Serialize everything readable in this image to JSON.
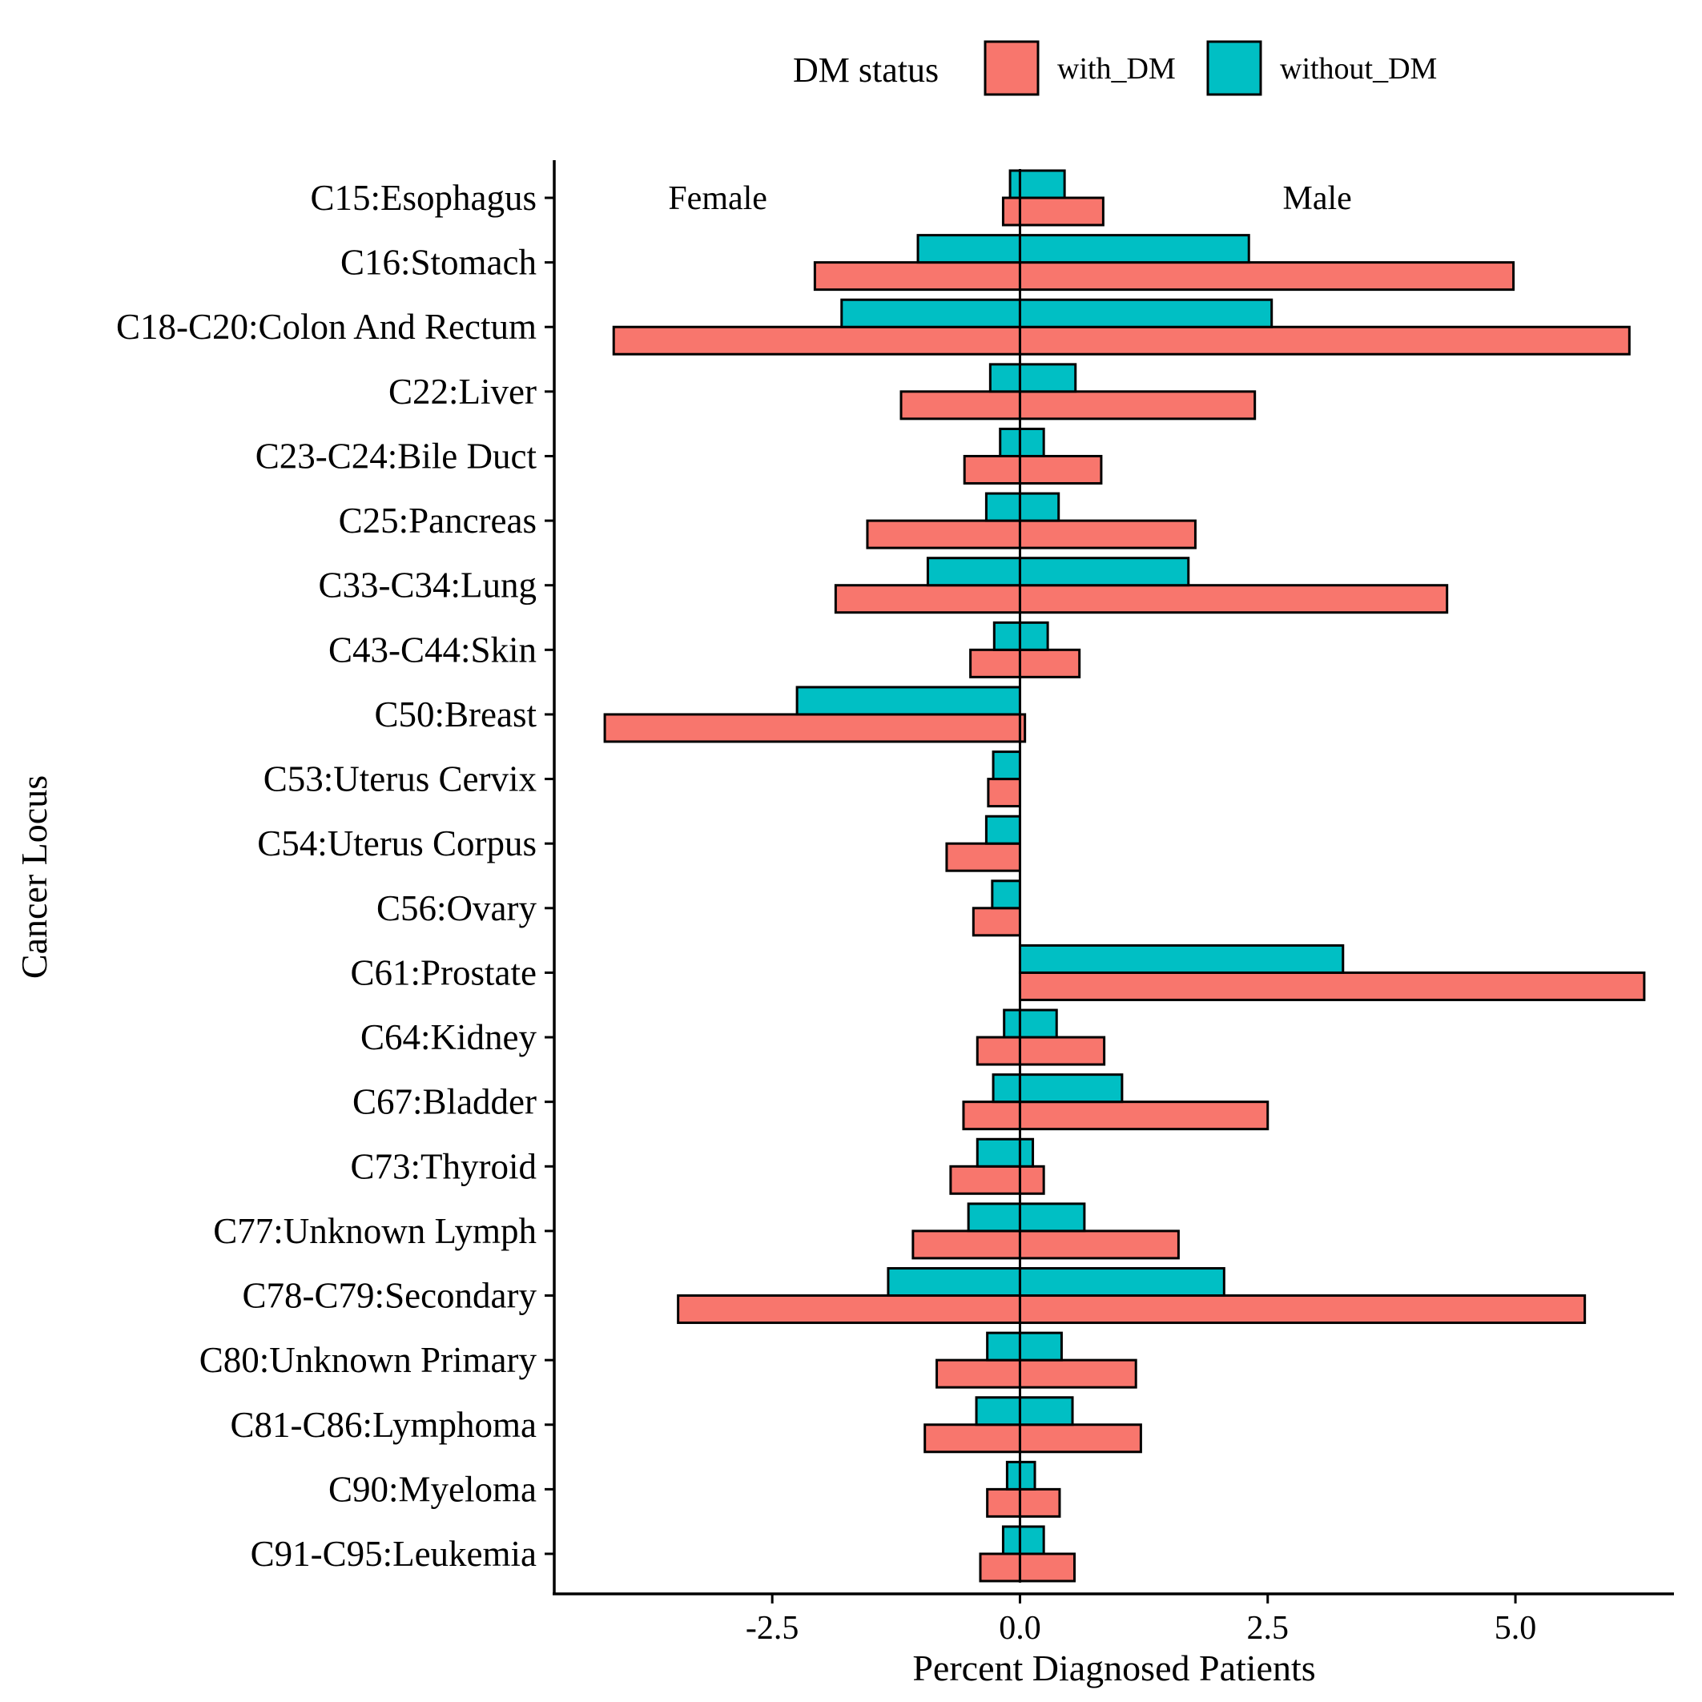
{
  "chart_data": {
    "type": "bar",
    "subtype": "diverging horizontal grouped bar",
    "xlabel": "Percent Diagnosed Patients",
    "ylabel": "Cancer Locus",
    "xlim": [
      -4.7,
      6.6
    ],
    "xticks": [
      -2.5,
      0.0,
      2.5,
      5.0
    ],
    "xtick_labels": [
      "-2.5",
      "0.0",
      "2.5",
      "5.0"
    ],
    "grid": false,
    "legend": {
      "title": "DM status",
      "position": "top",
      "entries": [
        "with_DM",
        "without_DM"
      ]
    },
    "annotations": {
      "left": "Female",
      "right": "Male"
    },
    "colors": {
      "with_DM": "#F8766D",
      "without_DM": "#00BFC4",
      "outline": "#000000"
    },
    "categories": [
      "C15:Esophagus",
      "C16:Stomach",
      "C18-C20:Colon And Rectum",
      "C22:Liver",
      "C23-C24:Bile Duct",
      "C25:Pancreas",
      "C33-C34:Lung",
      "C43-C44:Skin",
      "C50:Breast",
      "C53:Uterus Cervix",
      "C54:Uterus Corpus",
      "C56:Ovary",
      "C61:Prostate",
      "C64:Kidney",
      "C67:Bladder",
      "C73:Thyroid",
      "C77:Unknown Lymph",
      "C78-C79:Secondary",
      "C80:Unknown Primary",
      "C81-C86:Lymphoma",
      "C90:Myeloma",
      "C91-C95:Leukemia"
    ],
    "series": [
      {
        "name": "with_DM",
        "female": [
          -0.17,
          -2.07,
          -4.1,
          -1.2,
          -0.56,
          -1.54,
          -1.86,
          -0.5,
          -4.19,
          -0.32,
          -0.74,
          -0.47,
          0.0,
          -0.43,
          -0.57,
          -0.7,
          -1.08,
          -3.45,
          -0.84,
          -0.96,
          -0.33,
          -0.4
        ],
        "male": [
          0.84,
          4.98,
          6.15,
          2.37,
          0.82,
          1.77,
          4.31,
          0.6,
          0.05,
          0.0,
          0.0,
          0.0,
          6.3,
          0.85,
          2.5,
          0.24,
          1.6,
          5.7,
          1.17,
          1.22,
          0.4,
          0.55
        ]
      },
      {
        "name": "without_DM",
        "female": [
          -0.1,
          -1.03,
          -1.8,
          -0.3,
          -0.2,
          -0.34,
          -0.93,
          -0.26,
          -2.25,
          -0.27,
          -0.34,
          -0.28,
          0.0,
          -0.16,
          -0.27,
          -0.43,
          -0.52,
          -1.33,
          -0.33,
          -0.44,
          -0.13,
          -0.17
        ],
        "male": [
          0.45,
          2.31,
          2.54,
          0.56,
          0.24,
          0.39,
          1.7,
          0.28,
          0.0,
          0.0,
          0.0,
          0.0,
          3.26,
          0.37,
          1.03,
          0.13,
          0.65,
          2.06,
          0.42,
          0.53,
          0.15,
          0.24
        ]
      }
    ]
  }
}
